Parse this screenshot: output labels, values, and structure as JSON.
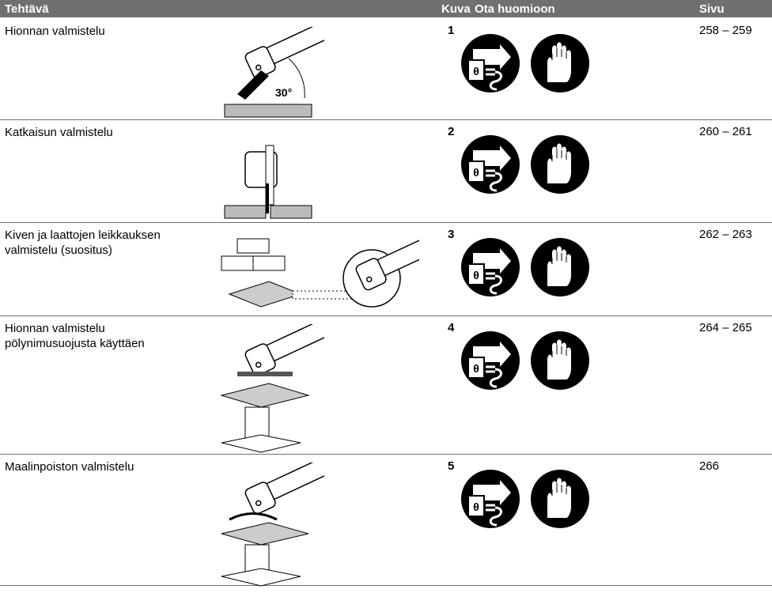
{
  "header": {
    "columns": [
      "Tehtävä",
      "Kuva",
      "Ota huomioon",
      "Sivu"
    ]
  },
  "rows": [
    {
      "task": [
        "Hionnan valmistelu"
      ],
      "figure": "1",
      "angle_label": "30°",
      "pages": "258 – 259"
    },
    {
      "task": [
        "Katkaisun valmistelu"
      ],
      "figure": "2",
      "pages": "260 – 261"
    },
    {
      "task": [
        "Kiven ja laattojen leikkauksen",
        "valmistelu (suositus)"
      ],
      "figure": "3",
      "pages": "262 – 263"
    },
    {
      "task": [
        "Hionnan valmistelu",
        "pölynimusuojusta käyttäen"
      ],
      "figure": "4",
      "pages": "264 – 265"
    },
    {
      "task": [
        "Maalinpoiston valmistelu"
      ],
      "figure": "5",
      "pages": "266"
    }
  ]
}
